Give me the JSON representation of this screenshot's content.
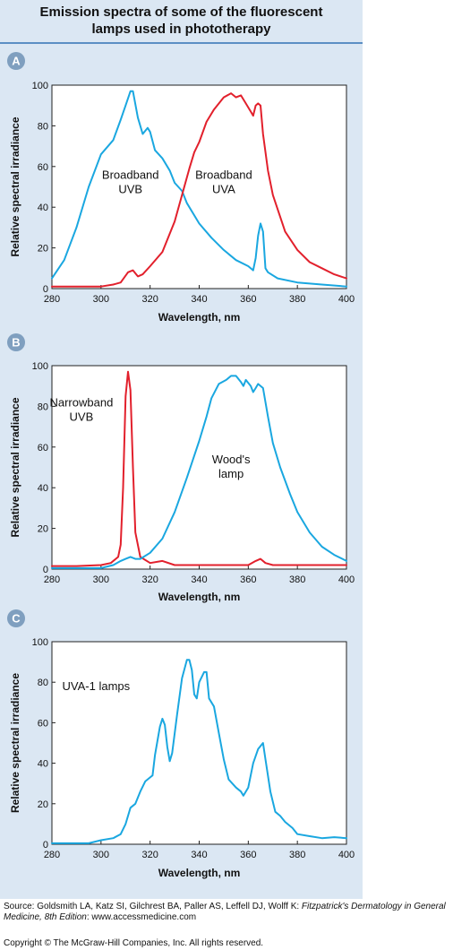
{
  "title": "Emission spectra of some of the fluorescent lamps used in phototherapy",
  "source": {
    "prefix": "Source: Goldsmith LA, Katz SI, Gilchrest BA, Paller AS, Leffell DJ, Wolff K: ",
    "book": "Fitzpatrick's Dermatology in General Medicine, 8th Edition",
    "suffix": ": www.accessmedicine.com"
  },
  "copyright": "Copyright © The McGraw-Hill Companies, Inc. All rights reserved.",
  "colors": {
    "blue": "#1aa7e0",
    "red": "#e2202c"
  },
  "chart_data": [
    {
      "panel": "A",
      "type": "line",
      "xlabel": "Wavelength, nm",
      "ylabel": "Relative spectral irradiance",
      "xlim": [
        280,
        400
      ],
      "ylim": [
        0,
        100
      ],
      "xticks": [
        280,
        300,
        320,
        340,
        360,
        380,
        400
      ],
      "yticks": [
        0,
        20,
        40,
        60,
        80,
        100
      ],
      "annotations": [
        {
          "lines": [
            "Broadband",
            "UVB"
          ],
          "x": 312,
          "y": 54
        },
        {
          "lines": [
            "Broadband",
            "UVA"
          ],
          "x": 350,
          "y": 54
        }
      ],
      "series": [
        {
          "color": "blue",
          "points": [
            [
              280,
              5
            ],
            [
              285,
              14
            ],
            [
              290,
              30
            ],
            [
              295,
              50
            ],
            [
              300,
              66
            ],
            [
              305,
              73
            ],
            [
              308,
              83
            ],
            [
              310,
              90
            ],
            [
              312,
              97
            ],
            [
              313,
              97
            ],
            [
              315,
              84
            ],
            [
              317,
              76
            ],
            [
              319,
              79
            ],
            [
              320,
              77
            ],
            [
              322,
              68
            ],
            [
              325,
              64
            ],
            [
              328,
              58
            ],
            [
              330,
              52
            ],
            [
              333,
              48
            ],
            [
              335,
              42
            ],
            [
              340,
              32
            ],
            [
              345,
              25
            ],
            [
              350,
              19
            ],
            [
              355,
              14
            ],
            [
              360,
              11
            ],
            [
              362,
              9
            ],
            [
              363,
              15
            ],
            [
              364,
              26
            ],
            [
              365,
              32
            ],
            [
              366,
              28
            ],
            [
              367,
              10
            ],
            [
              368,
              8
            ],
            [
              372,
              5
            ],
            [
              380,
              3
            ],
            [
              390,
              2
            ],
            [
              400,
              1
            ]
          ]
        },
        {
          "color": "red",
          "points": [
            [
              280,
              1
            ],
            [
              290,
              1
            ],
            [
              300,
              1
            ],
            [
              305,
              2
            ],
            [
              308,
              3
            ],
            [
              311,
              8
            ],
            [
              313,
              9
            ],
            [
              315,
              6
            ],
            [
              317,
              7
            ],
            [
              320,
              11
            ],
            [
              325,
              18
            ],
            [
              330,
              33
            ],
            [
              333,
              46
            ],
            [
              336,
              59
            ],
            [
              338,
              67
            ],
            [
              340,
              72
            ],
            [
              343,
              82
            ],
            [
              346,
              88
            ],
            [
              350,
              94
            ],
            [
              353,
              96
            ],
            [
              355,
              94
            ],
            [
              357,
              95
            ],
            [
              359,
              91
            ],
            [
              361,
              87
            ],
            [
              362,
              85
            ],
            [
              363,
              90
            ],
            [
              364,
              91
            ],
            [
              365,
              90
            ],
            [
              366,
              76
            ],
            [
              368,
              58
            ],
            [
              370,
              46
            ],
            [
              375,
              28
            ],
            [
              380,
              19
            ],
            [
              385,
              13
            ],
            [
              390,
              10
            ],
            [
              395,
              7
            ],
            [
              400,
              5
            ]
          ]
        }
      ]
    },
    {
      "panel": "B",
      "type": "line",
      "xlabel": "Wavelength, nm",
      "ylabel": "Relative spectral irradiance",
      "xlim": [
        280,
        400
      ],
      "ylim": [
        0,
        100
      ],
      "xticks": [
        280,
        300,
        320,
        340,
        360,
        380,
        400
      ],
      "yticks": [
        0,
        20,
        40,
        60,
        80,
        100
      ],
      "annotations": [
        {
          "lines": [
            "Narrowband",
            "UVB"
          ],
          "x": 292,
          "y": 80
        },
        {
          "lines": [
            "Wood's",
            "lamp"
          ],
          "x": 353,
          "y": 52
        }
      ],
      "series": [
        {
          "color": "red",
          "points": [
            [
              280,
              1.5
            ],
            [
              290,
              1.5
            ],
            [
              300,
              2
            ],
            [
              304,
              3
            ],
            [
              307,
              6
            ],
            [
              308,
              12
            ],
            [
              309,
              40
            ],
            [
              310,
              85
            ],
            [
              311,
              97
            ],
            [
              312,
              88
            ],
            [
              313,
              50
            ],
            [
              314,
              18
            ],
            [
              316,
              6
            ],
            [
              320,
              3
            ],
            [
              325,
              4
            ],
            [
              330,
              2
            ],
            [
              340,
              2
            ],
            [
              350,
              2
            ],
            [
              360,
              2
            ],
            [
              363,
              4
            ],
            [
              365,
              5
            ],
            [
              367,
              3
            ],
            [
              370,
              2
            ],
            [
              380,
              2
            ],
            [
              400,
              2
            ]
          ]
        },
        {
          "color": "blue",
          "points": [
            [
              280,
              0.5
            ],
            [
              300,
              0.5
            ],
            [
              305,
              2
            ],
            [
              308,
              4
            ],
            [
              310,
              5
            ],
            [
              312,
              6
            ],
            [
              314,
              5
            ],
            [
              316,
              5
            ],
            [
              320,
              8
            ],
            [
              325,
              15
            ],
            [
              330,
              28
            ],
            [
              335,
              45
            ],
            [
              340,
              63
            ],
            [
              343,
              75
            ],
            [
              345,
              84
            ],
            [
              348,
              91
            ],
            [
              351,
              93
            ],
            [
              353,
              95
            ],
            [
              355,
              95
            ],
            [
              357,
              92
            ],
            [
              358,
              90
            ],
            [
              359,
              93
            ],
            [
              361,
              90
            ],
            [
              362,
              87
            ],
            [
              363,
              89
            ],
            [
              364,
              91
            ],
            [
              366,
              89
            ],
            [
              368,
              75
            ],
            [
              370,
              62
            ],
            [
              373,
              50
            ],
            [
              377,
              37
            ],
            [
              380,
              28
            ],
            [
              385,
              18
            ],
            [
              390,
              11
            ],
            [
              395,
              7
            ],
            [
              400,
              4
            ]
          ]
        }
      ]
    },
    {
      "panel": "C",
      "type": "line",
      "xlabel": "Wavelength, nm",
      "ylabel": "Relative spectral irradiance",
      "xlim": [
        280,
        400
      ],
      "ylim": [
        0,
        100
      ],
      "xticks": [
        280,
        300,
        320,
        340,
        360,
        380,
        400
      ],
      "yticks": [
        0,
        20,
        40,
        60,
        80,
        100
      ],
      "annotations": [
        {
          "lines": [
            "UVA-1 lamps"
          ],
          "x": 298,
          "y": 76
        }
      ],
      "series": [
        {
          "color": "blue",
          "points": [
            [
              280,
              0.5
            ],
            [
              295,
              0.5
            ],
            [
              300,
              2
            ],
            [
              305,
              3
            ],
            [
              308,
              5
            ],
            [
              310,
              10
            ],
            [
              312,
              18
            ],
            [
              314,
              20
            ],
            [
              316,
              26
            ],
            [
              318,
              31
            ],
            [
              320,
              33
            ],
            [
              321,
              34
            ],
            [
              322,
              44
            ],
            [
              324,
              58
            ],
            [
              325,
              62
            ],
            [
              326,
              59
            ],
            [
              327,
              48
            ],
            [
              328,
              41
            ],
            [
              329,
              45
            ],
            [
              331,
              64
            ],
            [
              333,
              82
            ],
            [
              335,
              91
            ],
            [
              336,
              91
            ],
            [
              337,
              86
            ],
            [
              338,
              74
            ],
            [
              339,
              72
            ],
            [
              340,
              80
            ],
            [
              342,
              85
            ],
            [
              343,
              85
            ],
            [
              344,
              72
            ],
            [
              346,
              68
            ],
            [
              348,
              55
            ],
            [
              350,
              42
            ],
            [
              352,
              32
            ],
            [
              355,
              28
            ],
            [
              357,
              26
            ],
            [
              358,
              24
            ],
            [
              360,
              28
            ],
            [
              362,
              40
            ],
            [
              364,
              47
            ],
            [
              366,
              50
            ],
            [
              367,
              42
            ],
            [
              369,
              26
            ],
            [
              371,
              16
            ],
            [
              373,
              14
            ],
            [
              375,
              11
            ],
            [
              378,
              8
            ],
            [
              380,
              5
            ],
            [
              385,
              4
            ],
            [
              390,
              3
            ],
            [
              395,
              3.5
            ],
            [
              400,
              3
            ]
          ]
        }
      ]
    }
  ]
}
